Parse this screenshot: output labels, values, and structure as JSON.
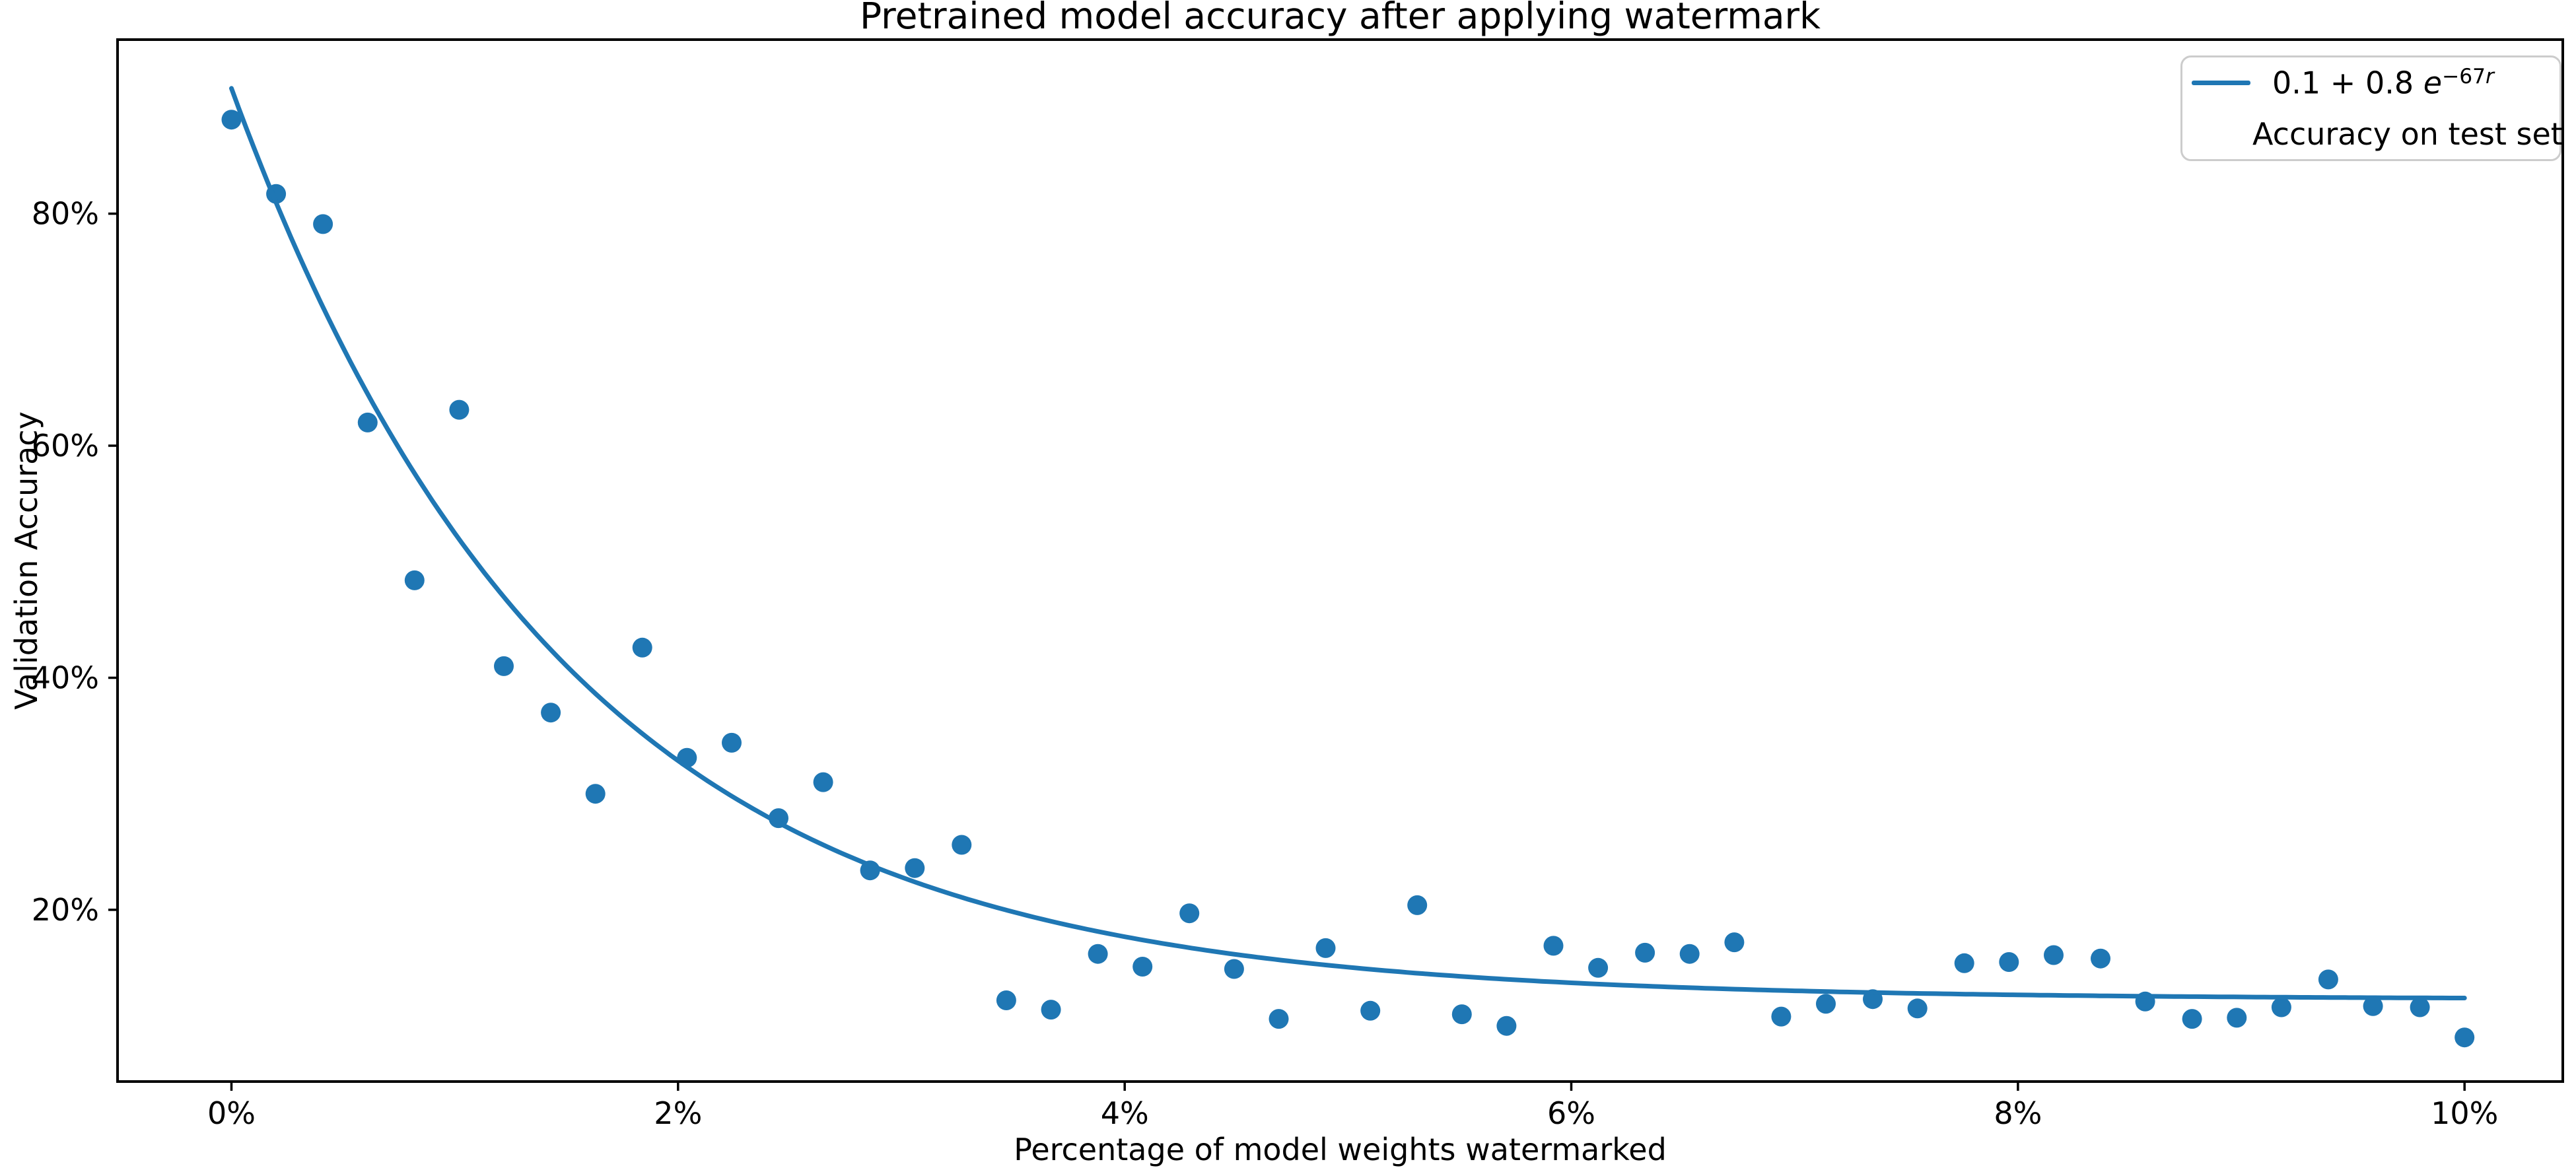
{
  "figure": {
    "title": "Pretrained model accuracy after applying watermark",
    "x_axis_label": "Percentage of model weights watermarked",
    "y_axis_label": "Validation Accuracy"
  },
  "legend": {
    "fit_label_prefix": "0.1 + 0.8 ",
    "fit_label_base": "e",
    "fit_label_exp_num": "−67",
    "fit_label_exp_var": "r",
    "scatter_label": "Accuracy on test set"
  },
  "colors": {
    "accent": "#1f77b4",
    "axis": "#000000",
    "legend_border": "#cccccc"
  },
  "chart_data": {
    "type": "scatter",
    "title": "Pretrained model accuracy after applying watermark",
    "xlabel": "Percentage of model weights watermarked",
    "ylabel": "Validation Accuracy",
    "x_tick_labels": [
      "0%",
      "2%",
      "4%",
      "6%",
      "8%",
      "10%"
    ],
    "x_tick_values": [
      0,
      2,
      4,
      6,
      8,
      10
    ],
    "y_tick_labels": [
      "20%",
      "40%",
      "60%",
      "80%"
    ],
    "y_tick_values": [
      20,
      40,
      60,
      80
    ],
    "xlim": [
      -0.51,
      10.44
    ],
    "ylim": [
      5.2,
      95.0
    ],
    "grid": false,
    "legend_position": "upper right",
    "series": [
      {
        "name": "Accuracy on test set",
        "type": "scatter",
        "units": "percent",
        "points": [
          [
            0.0,
            88.1
          ],
          [
            0.2,
            81.7
          ],
          [
            0.41,
            79.1
          ],
          [
            0.61,
            62.0
          ],
          [
            0.82,
            48.4
          ],
          [
            1.02,
            63.1
          ],
          [
            1.22,
            41.0
          ],
          [
            1.43,
            37.0
          ],
          [
            1.63,
            30.0
          ],
          [
            1.84,
            42.6
          ],
          [
            2.04,
            33.1
          ],
          [
            2.24,
            34.4
          ],
          [
            2.45,
            27.9
          ],
          [
            2.65,
            31.0
          ],
          [
            2.86,
            23.4
          ],
          [
            3.06,
            23.6
          ],
          [
            3.27,
            25.6
          ],
          [
            3.47,
            12.2
          ],
          [
            3.67,
            11.4
          ],
          [
            3.88,
            16.2
          ],
          [
            4.08,
            15.1
          ],
          [
            4.29,
            19.7
          ],
          [
            4.49,
            14.9
          ],
          [
            4.69,
            10.6
          ],
          [
            4.9,
            16.7
          ],
          [
            5.1,
            11.3
          ],
          [
            5.31,
            20.4
          ],
          [
            5.51,
            11.0
          ],
          [
            5.71,
            10.0
          ],
          [
            5.92,
            16.9
          ],
          [
            6.12,
            15.0
          ],
          [
            6.33,
            16.3
          ],
          [
            6.53,
            16.2
          ],
          [
            6.73,
            17.2
          ],
          [
            6.94,
            10.8
          ],
          [
            7.14,
            11.9
          ],
          [
            7.35,
            12.3
          ],
          [
            7.55,
            11.5
          ],
          [
            7.76,
            15.4
          ],
          [
            7.96,
            15.5
          ],
          [
            8.16,
            16.1
          ],
          [
            8.37,
            15.8
          ],
          [
            8.57,
            12.1
          ],
          [
            8.78,
            10.6
          ],
          [
            8.98,
            10.7
          ],
          [
            9.18,
            11.6
          ],
          [
            9.39,
            14.0
          ],
          [
            9.59,
            11.7
          ],
          [
            9.8,
            11.6
          ],
          [
            10.0,
            9.0
          ]
        ]
      },
      {
        "name": "0.1 + 0.8 e^(−67r)",
        "type": "line",
        "curve": {
          "offset_pct": 12.3,
          "amplitude_pct": 78.5,
          "decay_per_pct": 0.67,
          "r_min": 0,
          "r_max": 10
        }
      }
    ]
  }
}
